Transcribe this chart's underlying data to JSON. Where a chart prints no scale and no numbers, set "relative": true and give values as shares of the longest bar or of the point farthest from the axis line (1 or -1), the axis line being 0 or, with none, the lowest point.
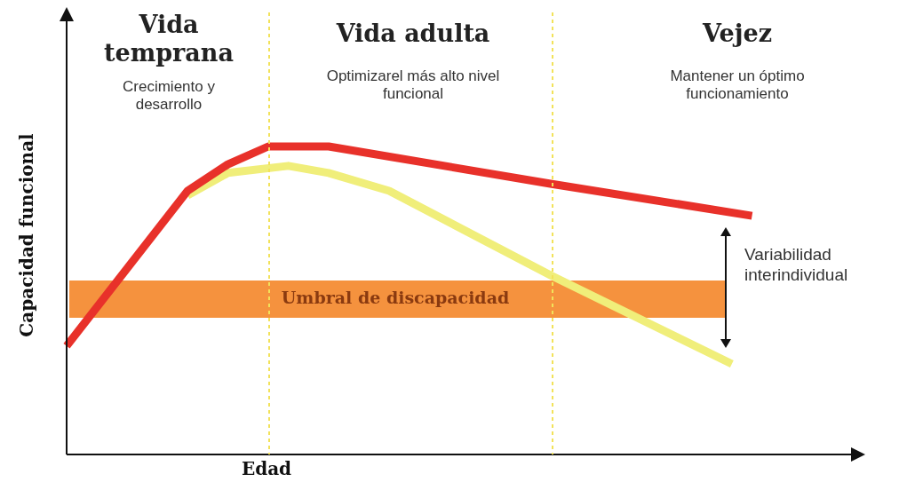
{
  "chart_data": {
    "type": "line",
    "relative": true,
    "xlabel": "Edad",
    "ylabel": "Capacidad funcional",
    "marker": "none",
    "categories": [
      null,
      null,
      null,
      null,
      null,
      null,
      null,
      null,
      null,
      null,
      null,
      null,
      null,
      null,
      null,
      null,
      null,
      null,
      null,
      null,
      null,
      null,
      null,
      null,
      null,
      null,
      null,
      null,
      null,
      null,
      null,
      null,
      null,
      null,
      null,
      null,
      null,
      null,
      null,
      null
    ],
    "series": [
      {
        "color": "#e8312a",
        "values": [
          0.352,
          null,
          null,
          null,
          null,
          null,
          0.856,
          null,
          0.942,
          null,
          1,
          null,
          null,
          1,
          null,
          null,
          null,
          null,
          null,
          null,
          null,
          null,
          null,
          null,
          0.879,
          null,
          null,
          null,
          null,
          null,
          null,
          null,
          null,
          null,
          0.775,
          null,
          null,
          null,
          null,
          null
        ]
      },
      {
        "color": "#f0ee7a",
        "values": [
          null,
          null,
          null,
          null,
          null,
          null,
          0.841,
          null,
          0.914,
          null,
          null,
          0.937,
          null,
          0.914,
          null,
          null,
          0.856,
          null,
          null,
          null,
          null,
          null,
          null,
          null,
          0.582,
          null,
          null,
          null,
          null,
          null,
          null,
          null,
          null,
          0.294,
          null,
          null,
          null,
          null,
          null,
          null
        ]
      }
    ],
    "bands": [
      {
        "axis": "y",
        "from": 0.444,
        "to": 0.565,
        "label": "Umbral de discapacidad",
        "color": "#f5923e"
      }
    ],
    "annotations": [
      "Vida temprana",
      "Crecimiento y desarrollo",
      "Vida adulta",
      "Optimizarel más alto nivel funcional",
      "Vejez",
      "Mantener un óptimo funcionamiento",
      "Variabilidad interindividual"
    ]
  }
}
